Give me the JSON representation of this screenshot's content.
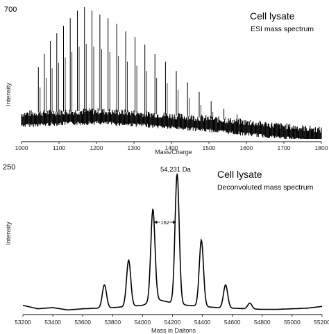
{
  "chart_data": [
    {
      "type": "line",
      "title": "Cell lysate",
      "subtitle": "ESI mass spectrum",
      "xlabel": "Mass/Charge",
      "ylabel": "Intensity",
      "xlim": [
        1000,
        1800
      ],
      "ylim": [
        0,
        700
      ],
      "ymax_label": "700",
      "xticks": [
        1000,
        1100,
        1200,
        1300,
        1400,
        1500,
        1600,
        1700,
        1800
      ],
      "peaks": {
        "x": [
          1045,
          1061,
          1077,
          1094,
          1112,
          1130,
          1149,
          1168,
          1188,
          1209,
          1231,
          1254,
          1278,
          1303,
          1329,
          1356,
          1384,
          1413,
          1443,
          1474,
          1506,
          1540,
          1575,
          1611,
          1649,
          1689,
          1730,
          1773
        ],
        "y": [
          380,
          450,
          520,
          560,
          600,
          640,
          680,
          700,
          680,
          660,
          640,
          610,
          570,
          540,
          500,
          450,
          410,
          360,
          300,
          250,
          200,
          160,
          130,
          100,
          80,
          60,
          40,
          25
        ]
      },
      "baseline": {
        "x": [
          1000,
          1100,
          1200,
          1300,
          1400,
          1500,
          1600,
          1700,
          1800
        ],
        "y": [
          95,
          105,
          110,
          100,
          85,
          70,
          50,
          30,
          10
        ]
      }
    },
    {
      "type": "line",
      "title": "Cell lysate",
      "subtitle": "Deconvoluted mass spectrum",
      "xlabel": "Mass in Daltons",
      "ylabel": "Intensity",
      "xlim": [
        53200,
        55200
      ],
      "ylim": [
        0,
        250
      ],
      "ymax_label": "250",
      "xticks": [
        53200,
        53400,
        53600,
        53800,
        54000,
        54200,
        54400,
        54600,
        54800,
        55000,
        55200
      ],
      "peak_label": "54,231 Da",
      "delta_label": "162",
      "peaks": {
        "x": [
          53745,
          53907,
          54069,
          54231,
          54393,
          54555,
          54717
        ],
        "y": [
          40,
          80,
          160,
          225,
          115,
          40,
          10
        ]
      },
      "baseline": {
        "x": [
          53200,
          53300,
          53400,
          53500,
          53600,
          53700,
          53800,
          53900,
          54000,
          54100,
          54200,
          54300,
          54400,
          54500,
          54600,
          54700,
          54800,
          54900,
          55000,
          55100,
          55200
        ],
        "y": [
          10,
          4,
          6,
          2,
          4,
          5,
          6,
          8,
          10,
          20,
          14,
          10,
          8,
          6,
          5,
          4,
          3,
          3,
          4,
          5,
          8
        ]
      }
    }
  ]
}
